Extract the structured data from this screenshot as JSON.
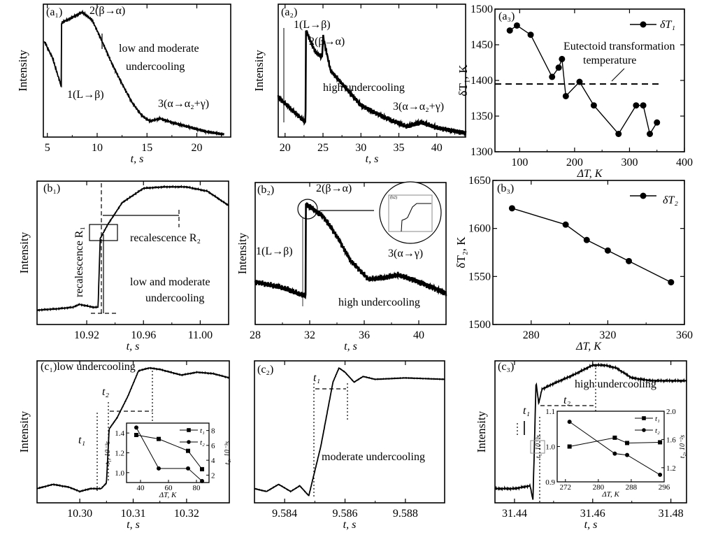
{
  "colors": {
    "ink": "#000000",
    "background": "#ffffff",
    "inset_frame": "#888888"
  },
  "chart_data": [
    {
      "id": "a1",
      "type": "line",
      "panel_label": "(a₁)",
      "xlabel": "t, s",
      "ylabel": "Intensity",
      "xlim": [
        4.6,
        23.4
      ],
      "ylim": [
        0,
        1
      ],
      "xticks": [
        5,
        10,
        15,
        20
      ],
      "yticks": [],
      "series": [
        {
          "x": [
            4.7,
            5.5,
            6.4,
            6.42,
            7.5,
            8.5,
            9.5,
            10.5,
            11.5,
            12.5,
            13.5,
            14.5,
            15.3,
            16.3,
            17.5,
            19,
            21,
            22.7
          ],
          "y": [
            0.72,
            0.6,
            0.38,
            0.86,
            0.9,
            0.94,
            0.88,
            0.72,
            0.55,
            0.4,
            0.26,
            0.16,
            0.12,
            0.14,
            0.11,
            0.08,
            0.04,
            0.02
          ]
        }
      ],
      "annotations": [
        "2(β→α)",
        "low and moderate",
        "undercooling",
        "1(L→β)",
        "3(α→α₂+γ)"
      ]
    },
    {
      "id": "a2",
      "type": "line",
      "panel_label": "(a₂)",
      "xlabel": "t, s",
      "ylabel": "Intensity",
      "xlim": [
        19.1,
        43.8
      ],
      "ylim": [
        0,
        1
      ],
      "xticks": [
        20,
        25,
        30,
        35,
        40
      ],
      "yticks": [],
      "series": [
        {
          "x": [
            19.1,
            22.7,
            22.75,
            24,
            24.9,
            25,
            26,
            28,
            30,
            33,
            36,
            38,
            40,
            43.8
          ],
          "y": [
            0.3,
            0.11,
            0.8,
            0.64,
            0.6,
            0.76,
            0.5,
            0.37,
            0.24,
            0.15,
            0.08,
            0.11,
            0.07,
            0.03
          ]
        }
      ],
      "annotations": [
        "1(L→β)",
        "2(β→α)",
        "high undercooling",
        "3(α→α₂+γ)"
      ]
    },
    {
      "id": "a3",
      "type": "line",
      "panel_label": "(a₃)",
      "xlabel": "ΔT, K",
      "ylabel": "δT₁, K",
      "xlim": [
        55,
        400
      ],
      "ylim": [
        1300,
        1500
      ],
      "xticks": [
        100,
        200,
        300,
        400
      ],
      "yticks": [
        1300,
        1350,
        1400,
        1450,
        1500
      ],
      "series": [
        {
          "name": "δT₁",
          "marker": "circle",
          "x": [
            82,
            95,
            120,
            159,
            171,
            177,
            184,
            209,
            235,
            280,
            312,
            325,
            337,
            350
          ],
          "y": [
            1470,
            1477,
            1464,
            1405,
            1418,
            1430,
            1378,
            1398,
            1365,
            1325,
            1365,
            1365,
            1325,
            1341
          ]
        }
      ],
      "reference_line": {
        "y": 1395,
        "x_range": [
          55,
          360
        ],
        "style": "dashed",
        "label": [
          "Eutectoid transformation",
          "temperature"
        ]
      },
      "legend": "top-right"
    },
    {
      "id": "b1",
      "type": "line",
      "panel_label": "(b₁)",
      "xlabel": "t, s",
      "ylabel": "Intensity",
      "xlim": [
        10.885,
        11.02
      ],
      "ylim": [
        0,
        1
      ],
      "xticks": [
        10.92,
        10.96,
        11.0
      ],
      "xtick_labels": [
        "10.92",
        "10.96",
        "11.00"
      ],
      "yticks": [],
      "series": [
        {
          "x": [
            10.885,
            10.9,
            10.91,
            10.915,
            10.92,
            10.925,
            10.928,
            10.9295,
            10.935,
            10.945,
            10.96,
            10.975,
            10.99,
            11.005,
            11.02
          ],
          "y": [
            0.1,
            0.11,
            0.12,
            0.14,
            0.13,
            0.12,
            0.12,
            0.6,
            0.7,
            0.85,
            0.95,
            0.96,
            0.96,
            0.93,
            0.83
          ]
        }
      ],
      "annotations": [
        "recalescence R₂",
        "recalescence R₁",
        "low and moderate",
        "undercooling"
      ]
    },
    {
      "id": "b2",
      "type": "line",
      "panel_label": "(b₂)",
      "xlabel": "t, s",
      "ylabel": "Intensity",
      "xlim": [
        28,
        42
      ],
      "ylim": [
        0,
        1
      ],
      "xticks": [
        28,
        32,
        36,
        40
      ],
      "yticks": [],
      "series": [
        {
          "x": [
            28,
            30,
            31.7,
            31.72,
            33,
            34,
            35,
            36.3,
            37.5,
            38.5,
            40,
            42
          ],
          "y": [
            0.3,
            0.26,
            0.2,
            0.85,
            0.76,
            0.62,
            0.45,
            0.32,
            0.33,
            0.35,
            0.3,
            0.22
          ]
        }
      ],
      "annotations": [
        "2(β→α)",
        "1(L→β)",
        "3(α→γ)",
        "high undercooling"
      ],
      "inset_label": "(b2)"
    },
    {
      "id": "b3",
      "type": "line",
      "panel_label": "(b₃)",
      "xlabel": "ΔT, K",
      "ylabel": "δT₂, K",
      "xlim": [
        260,
        360
      ],
      "ylim": [
        1500,
        1650
      ],
      "xticks": [
        280,
        320,
        360
      ],
      "yticks": [
        1500,
        1550,
        1600,
        1650
      ],
      "series": [
        {
          "name": "δT₂",
          "marker": "circle",
          "x": [
            270,
            298,
            309,
            320,
            331,
            353
          ],
          "y": [
            1621,
            1604,
            1588,
            1577,
            1566,
            1544
          ]
        }
      ],
      "legend": "top-right"
    },
    {
      "id": "c1",
      "type": "line",
      "panel_label": "(c₁)low undercooling",
      "xlabel": "t, s",
      "ylabel": "Intensity",
      "xlim": [
        10.292,
        10.328
      ],
      "ylim": [
        0,
        1
      ],
      "xticks": [
        10.3,
        10.31,
        10.32
      ],
      "xtick_labels": [
        "10.30",
        "10.31",
        "10.32"
      ],
      "yticks": [],
      "series": [
        {
          "x": [
            10.292,
            10.295,
            10.298,
            10.3,
            10.302,
            10.304,
            10.305,
            10.3055,
            10.307,
            10.309,
            10.311,
            10.313,
            10.315,
            10.317,
            10.319,
            10.322,
            10.325,
            10.328
          ],
          "y": [
            0.1,
            0.13,
            0.11,
            0.08,
            0.1,
            0.1,
            0.14,
            0.52,
            0.6,
            0.75,
            0.93,
            0.95,
            0.94,
            0.92,
            0.9,
            0.92,
            0.91,
            0.88
          ]
        }
      ],
      "annotations": [
        "t₂",
        "t₁"
      ],
      "inset": {
        "type": "line",
        "xlabel": "ΔT, K",
        "ylabel": "t₁, 10⁻³s",
        "ylabel2": "t₂, 10⁻³s",
        "xlim": [
          30,
          89
        ],
        "ylim": [
          0.9,
          1.5
        ],
        "ylim2": [
          1,
          9
        ],
        "xticks": [
          40,
          60,
          80
        ],
        "yticks": [
          1.0,
          1.2,
          1.4
        ],
        "ytick_labels": [
          "1.0",
          "1.2",
          "1.4"
        ],
        "yticks2": [
          2,
          4,
          6,
          8
        ],
        "series": [
          {
            "name": "t₁",
            "marker": "square",
            "axis": "left",
            "x": [
              37,
              53,
              74,
              84
            ],
            "y": [
              1.38,
              1.34,
              1.22,
              1.035
            ]
          },
          {
            "name": "t₂",
            "marker": "circle",
            "axis": "right",
            "x": [
              37,
              53,
              74,
              84
            ],
            "y": [
              8.4,
              2.9,
              2.9,
              1.2
            ]
          }
        ],
        "legend": "top-right"
      }
    },
    {
      "id": "c2",
      "type": "line",
      "panel_label": "(c₂)",
      "xlabel": "t, s",
      "ylabel": "",
      "xlim": [
        9.583,
        9.5893
      ],
      "ylim": [
        0,
        1
      ],
      "xticks": [
        9.584,
        9.586,
        9.588
      ],
      "xtick_labels": [
        "9.584",
        "9.586",
        "9.588"
      ],
      "yticks": [],
      "series": [
        {
          "x": [
            9.583,
            9.5834,
            9.5838,
            9.5842,
            9.5845,
            9.5848,
            9.5852,
            9.5856,
            9.5858,
            9.586,
            9.5863,
            9.5866,
            9.587,
            9.588,
            9.5893
          ],
          "y": [
            0.1,
            0.08,
            0.13,
            0.08,
            0.12,
            0.05,
            0.4,
            0.85,
            0.95,
            0.92,
            0.85,
            0.89,
            0.87,
            0.88,
            0.87
          ]
        }
      ],
      "annotations": [
        "t₁",
        "moderate undercooling"
      ]
    },
    {
      "id": "c3",
      "type": "line",
      "panel_label": "(c₃)",
      "xlabel": "t, s",
      "ylabel": "Intensity",
      "xlim": [
        31.435,
        31.484
      ],
      "ylim": [
        0,
        1
      ],
      "xticks": [
        31.44,
        31.46,
        31.48
      ],
      "xtick_labels": [
        "31.44",
        "31.46",
        "31.48"
      ],
      "yticks": [],
      "series": [
        {
          "x": [
            31.435,
            31.44,
            31.444,
            31.4447,
            31.445,
            31.4455,
            31.4462,
            31.447,
            31.45,
            31.455,
            31.46,
            31.463,
            31.466,
            31.47,
            31.475,
            31.484
          ],
          "y": [
            0.1,
            0.1,
            0.12,
            0.02,
            0.3,
            0.85,
            0.7,
            0.8,
            0.84,
            0.9,
            0.97,
            0.97,
            0.95,
            0.88,
            0.86,
            0.86
          ]
        }
      ],
      "annotations": [
        "high undercooling",
        "t₂",
        "t₁"
      ],
      "inset": {
        "type": "line",
        "xlabel": "ΔT, K",
        "ylabel": "t₁, 10⁻³s",
        "ylabel2": "t₂, 10⁻²s",
        "xlim": [
          270,
          296
        ],
        "ylim": [
          0.9,
          1.1
        ],
        "ylim2": [
          1.0,
          2.0
        ],
        "xticks": [
          272,
          280,
          288,
          296
        ],
        "yticks": [
          0.9,
          1.0,
          1.1
        ],
        "ytick_labels": [
          "0.9",
          "1.0",
          "1.1"
        ],
        "yticks2": [
          1.2,
          1.6,
          2.0
        ],
        "ytick2_labels": [
          "1.2",
          "1.6",
          "2.0"
        ],
        "series": [
          {
            "name": "t₁",
            "marker": "square",
            "axis": "left",
            "x": [
              273,
              284,
              287,
              295
            ],
            "y": [
              1.0,
              1.025,
              1.01,
              1.012
            ]
          },
          {
            "name": "t₂",
            "marker": "circle",
            "axis": "right",
            "x": [
              273,
              284,
              287,
              295
            ],
            "y": [
              1.85,
              1.4,
              1.38,
              1.1
            ]
          }
        ],
        "legend": "top-right"
      }
    }
  ]
}
